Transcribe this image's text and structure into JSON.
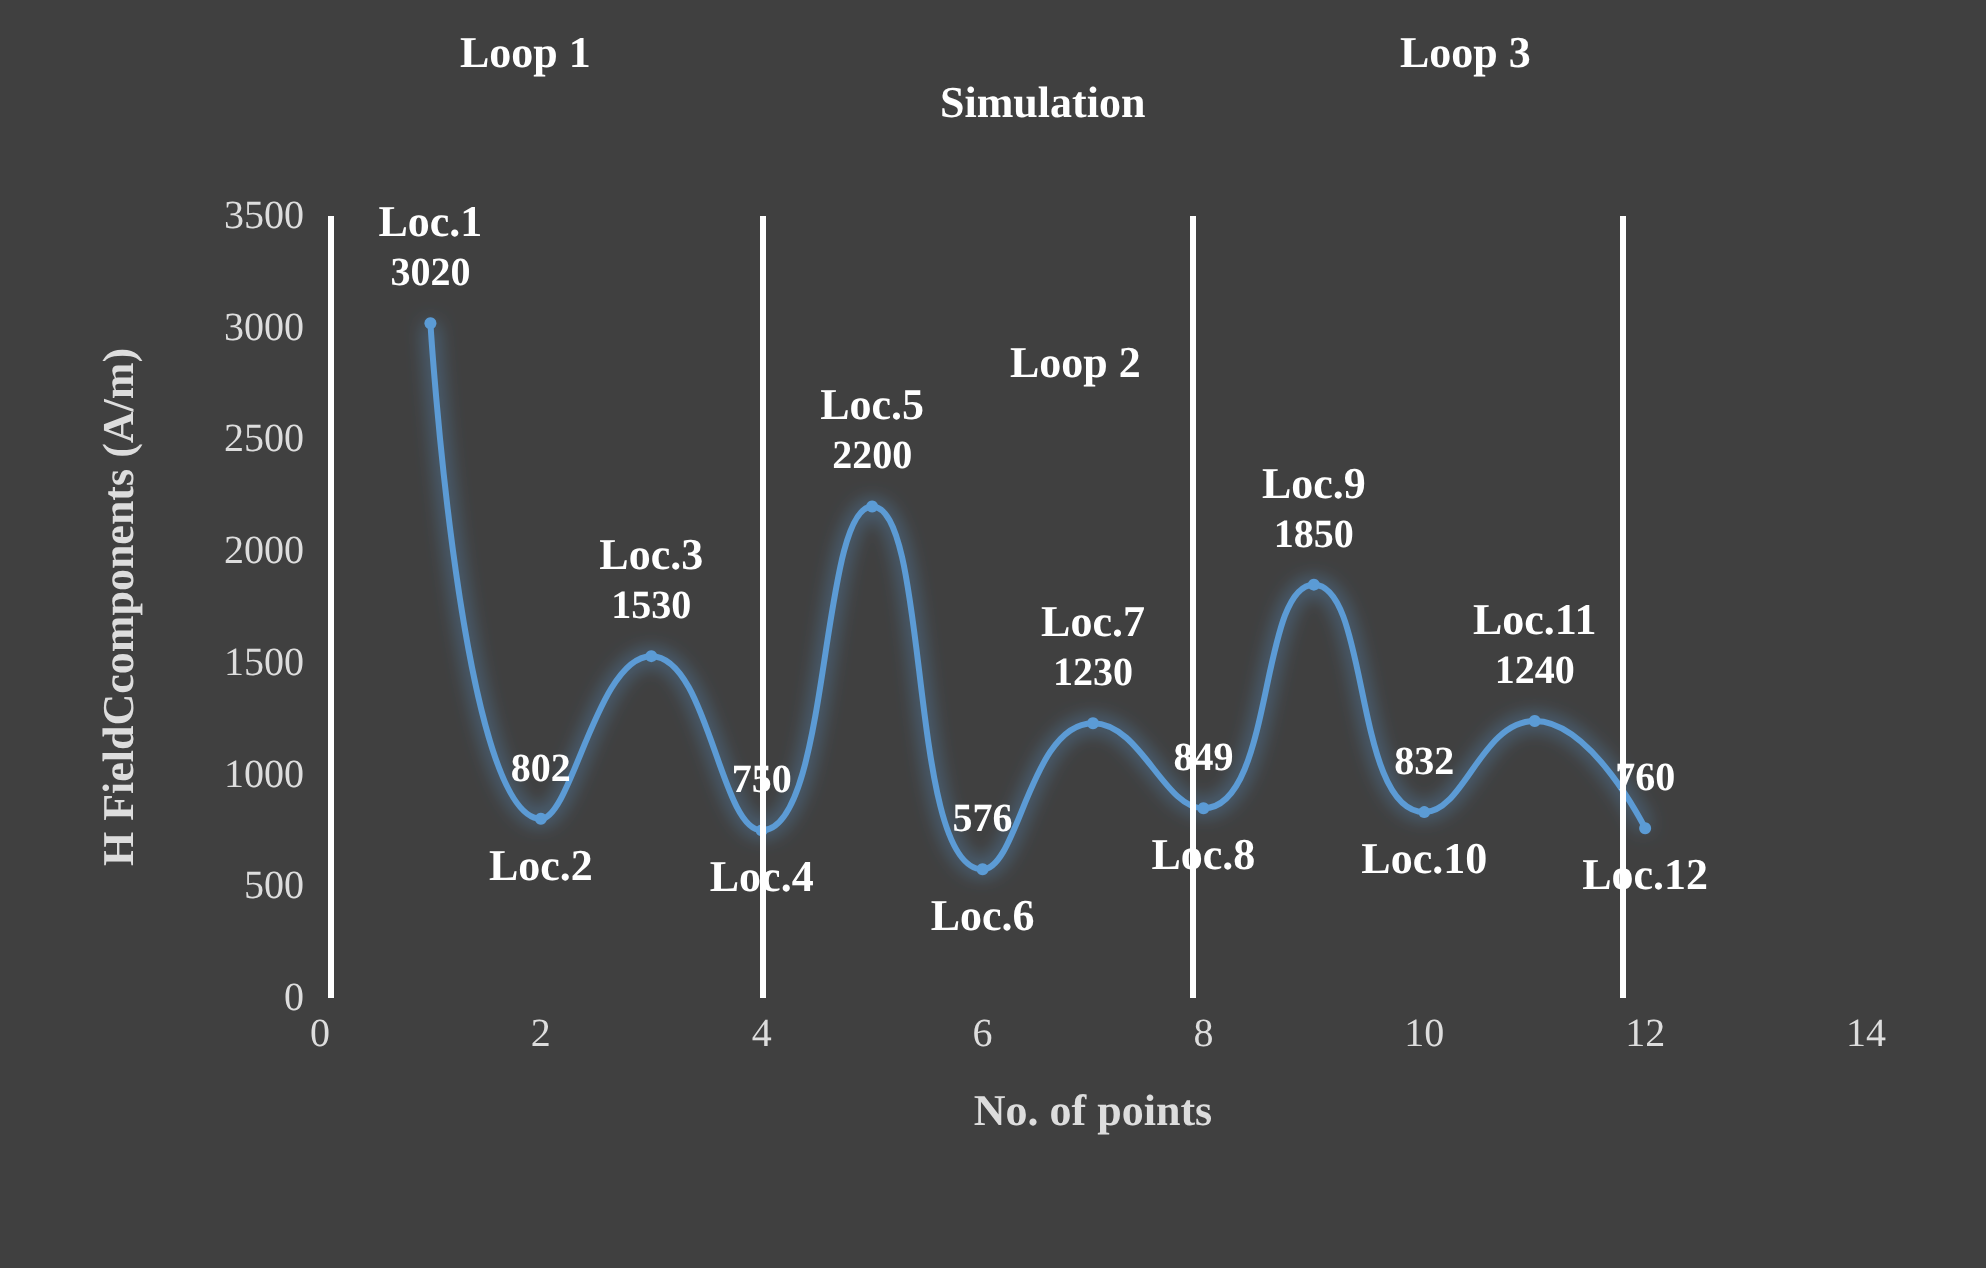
{
  "chart_data": {
    "type": "line",
    "xlabel": "No. of points",
    "ylabel": "H FieldCcomponents (A/m)",
    "x": [
      1,
      2,
      3,
      4,
      5,
      6,
      7,
      8,
      9,
      10,
      11,
      12
    ],
    "series": [
      {
        "color": "#5b9bd5",
        "values": [
          3020,
          802,
          1530,
          750,
          2200,
          576,
          1230,
          849,
          1850,
          832,
          1240,
          760
        ]
      }
    ],
    "xlim": [
      0,
      14
    ],
    "xticks": [
      0,
      2,
      4,
      6,
      8,
      10,
      12,
      14
    ],
    "ylim": [
      0,
      3500
    ],
    "yticks": [
      0,
      500,
      1000,
      1500,
      2000,
      2500,
      3000,
      3500
    ],
    "data_labels": true,
    "grid": false,
    "marker": "circle",
    "line_style": "solid",
    "ref_lines": [
      {
        "axis": "x",
        "value": 0.1,
        "color": "#ffffff"
      },
      {
        "axis": "x",
        "value": 4,
        "color": "#ffffff"
      },
      {
        "axis": "x",
        "value": 7.9,
        "color": "#ffffff"
      },
      {
        "axis": "x",
        "value": 11.8,
        "color": "#ffffff"
      }
    ],
    "annotations": [
      "Loop 1",
      "Simulation",
      "Loop 3",
      "Loop 2",
      {
        "text": "Loc.1",
        "x": 1,
        "y": 3020
      },
      {
        "text": "Loc.2",
        "x": 2,
        "y": 802
      },
      {
        "text": "Loc.3",
        "x": 3,
        "y": 1530
      },
      {
        "text": "Loc.4",
        "x": 4,
        "y": 750
      },
      {
        "text": "Loc.5",
        "x": 5,
        "y": 2200
      },
      {
        "text": "Loc.6",
        "x": 6,
        "y": 576
      },
      {
        "text": "Loc.7",
        "x": 7,
        "y": 1230
      },
      {
        "text": "Loc.8",
        "x": 8,
        "y": 849
      },
      {
        "text": "Loc.9",
        "x": 9,
        "y": 1850
      },
      {
        "text": "Loc.10",
        "x": 10,
        "y": 832
      },
      {
        "text": "Loc.11",
        "x": 11,
        "y": 1240
      },
      {
        "text": "Loc.12",
        "x": 12,
        "y": 760
      }
    ]
  }
}
